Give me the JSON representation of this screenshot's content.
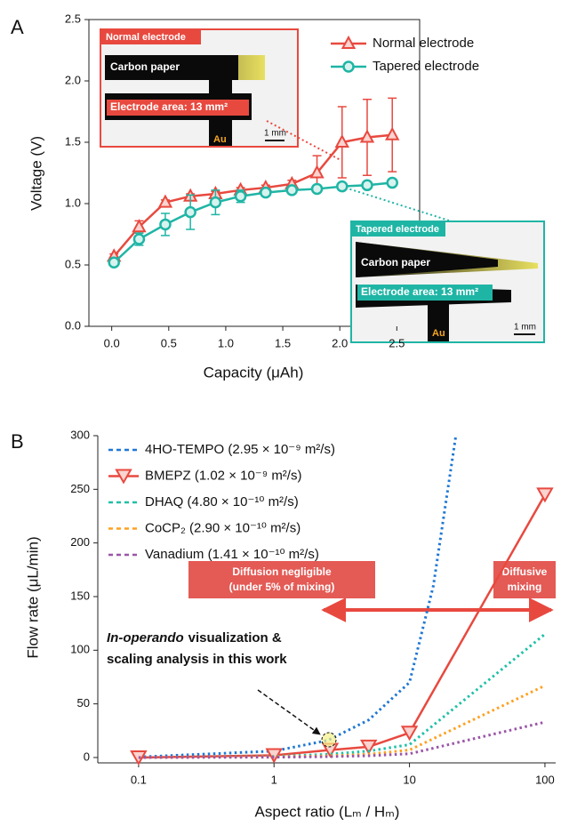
{
  "chart_data": [
    {
      "type": "line",
      "panel": "A",
      "x_label": "Capacity (μAh)",
      "y_label": "Voltage (V)",
      "x": [
        0.02,
        0.24,
        0.47,
        0.69,
        0.91,
        1.13,
        1.35,
        1.58,
        1.8,
        2.02,
        2.24,
        2.46
      ],
      "series": [
        {
          "name": "Normal electrode",
          "color": "#e8493f",
          "marker": "triangle-up",
          "style": "solid",
          "values": [
            0.57,
            0.81,
            1.01,
            1.06,
            1.08,
            1.11,
            1.13,
            1.16,
            1.25,
            1.5,
            1.54,
            1.56
          ],
          "errors": [
            0.02,
            0.05,
            0.02,
            0.02,
            0.02,
            0.02,
            0.02,
            0.03,
            0.14,
            0.29,
            0.31,
            0.3
          ]
        },
        {
          "name": "Tapered electrode",
          "color": "#1fb5a5",
          "marker": "circle",
          "style": "solid",
          "values": [
            0.52,
            0.71,
            0.83,
            0.93,
            1.01,
            1.06,
            1.09,
            1.11,
            1.12,
            1.14,
            1.15,
            1.17
          ],
          "errors": [
            0.02,
            0.05,
            0.09,
            0.14,
            0.1,
            0.05,
            0.02,
            0.02,
            0.02,
            0.02,
            0.02,
            0.02
          ]
        }
      ],
      "xlim": [
        -0.2,
        2.7
      ],
      "xticks": [
        {
          "value": 0,
          "label": "0.0"
        },
        {
          "value": 0.5,
          "label": "0.5"
        },
        {
          "value": 1,
          "label": "1.0"
        },
        {
          "value": 1.5,
          "label": "1.5"
        },
        {
          "value": 2,
          "label": "2.0"
        },
        {
          "value": 2.5,
          "label": "2.5"
        }
      ],
      "ylim": [
        0,
        2.5
      ],
      "yticks": [
        {
          "value": 0,
          "label": "0.0"
        },
        {
          "value": 0.5,
          "label": "0.5"
        },
        {
          "value": 1,
          "label": "1.0"
        },
        {
          "value": 1.5,
          "label": "1.5"
        },
        {
          "value": 2,
          "label": "2.0"
        },
        {
          "value": 2.5,
          "label": "2.5"
        }
      ],
      "insets": [
        {
          "title": "Normal electrode",
          "material": "Carbon paper",
          "area": "Electrode area: 13 mm²",
          "contact": "Au",
          "scale": "1 mm"
        },
        {
          "title": "Tapered electrode",
          "material": "Carbon paper",
          "area": "Electrode area: 13 mm²",
          "contact": "Au",
          "scale": "1 mm"
        }
      ]
    },
    {
      "type": "line",
      "panel": "B",
      "log_x": true,
      "x_label": "Aspect ratio (Lₘ / Hₘ)",
      "y_label": "Flow rate (μL/min)",
      "series": [
        {
          "name": "4HO-TEMPO (2.95 × 10⁻⁹ m²/s)",
          "color": "#1f77d4",
          "style": "dotted",
          "x": [
            0.1,
            1,
            2.5,
            5,
            10,
            15,
            22
          ],
          "values": [
            0.5,
            6,
            16,
            35,
            70,
            160,
            300
          ]
        },
        {
          "name": "BMEPZ (1.02 × 10⁻⁹ m²/s)",
          "color": "#e8493f",
          "style": "solid",
          "marker": "triangle-down",
          "x": [
            0.1,
            1,
            2.6,
            5,
            10,
            100
          ],
          "values": [
            0,
            2,
            7,
            10,
            23,
            245
          ]
        },
        {
          "name": "DHAQ (4.80 × 10⁻¹⁰ m²/s)",
          "color": "#20c0a8",
          "style": "dotted",
          "x": [
            0.1,
            1,
            2.5,
            5,
            10,
            100
          ],
          "values": [
            0,
            1,
            3,
            6,
            12,
            115
          ]
        },
        {
          "name": "CoCP₂ (2.90 × 10⁻¹⁰ m²/s)",
          "color": "#ffa020",
          "style": "dotted",
          "x": [
            0.1,
            1,
            2.5,
            5,
            10,
            100
          ],
          "values": [
            0,
            0.6,
            1.5,
            3,
            7,
            67
          ]
        },
        {
          "name": "Vanadium (1.41 × 10⁻¹⁰ m²/s)",
          "color": "#9a55a8",
          "style": "dotted",
          "x": [
            0.1,
            1,
            2.5,
            5,
            10,
            100
          ],
          "values": [
            0,
            0.3,
            0.8,
            1.6,
            3.5,
            33
          ]
        }
      ],
      "xlim": [
        0.05,
        120
      ],
      "xticks": [
        0.1,
        1,
        10,
        100
      ],
      "ylim": [
        -5,
        300
      ],
      "yticks": [
        0,
        50,
        100,
        150,
        200,
        250,
        300
      ],
      "annotations": {
        "negligible": [
          "Diffusion negligible",
          "(under 5% of mixing)"
        ],
        "diffusive": [
          "Diffusive",
          "mixing"
        ],
        "this_work": [
          "In-operando",
          "visualization &",
          "scaling analysis in this work"
        ]
      }
    }
  ]
}
